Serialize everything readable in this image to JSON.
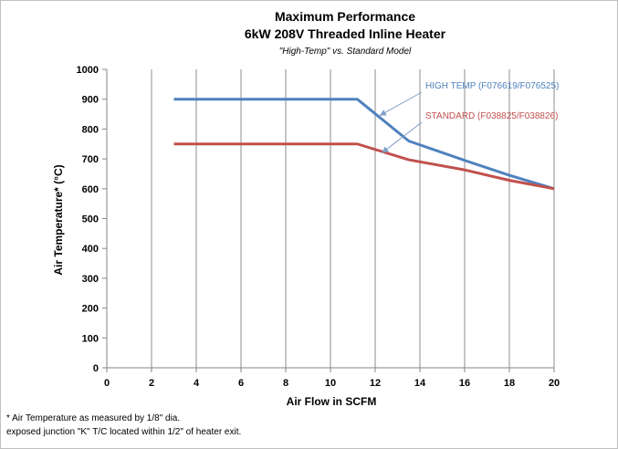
{
  "chart_data": {
    "type": "line",
    "title": "Maximum Performance",
    "title_line2": "6kW 208V Threaded Inline Heater",
    "subtitle": "\"High-Temp\" vs. Standard Model",
    "xlabel": "Air Flow in SCFM",
    "ylabel": "Air Temperature* (°C)",
    "xlim": [
      0,
      20
    ],
    "ylim": [
      0,
      1000
    ],
    "xticks": [
      "0",
      "2",
      "4",
      "6",
      "8",
      "10",
      "12",
      "14",
      "16",
      "18",
      "20"
    ],
    "yticks": [
      "0",
      "100",
      "200",
      "300",
      "400",
      "500",
      "600",
      "700",
      "800",
      "900",
      "1000"
    ],
    "grid": "vertical",
    "series": [
      {
        "name": "HIGH TEMP (F076619/F076525)",
        "color": "#4f81bd",
        "x": [
          3,
          11.2,
          13.5,
          16,
          18,
          20
        ],
        "y": [
          900,
          900,
          760,
          695,
          645,
          600
        ]
      },
      {
        "name": "STANDARD (F038825/F038826)",
        "color": "#c0504d",
        "x": [
          3,
          11.2,
          13.5,
          16,
          18,
          20
        ],
        "y": [
          750,
          750,
          697,
          663,
          628,
          600
        ]
      }
    ],
    "annotations": [
      {
        "series": 0,
        "label_position": "upper-right",
        "points_to": [
          12.2,
          845
        ]
      },
      {
        "series": 1,
        "label_position": "right",
        "points_to": [
          12.3,
          720
        ]
      }
    ]
  },
  "footnote": {
    "line1": "* Air Temperature as measured by 1/8\" dia.",
    "line2": "exposed junction \"K\" T/C located within 1/2\" of heater exit."
  }
}
